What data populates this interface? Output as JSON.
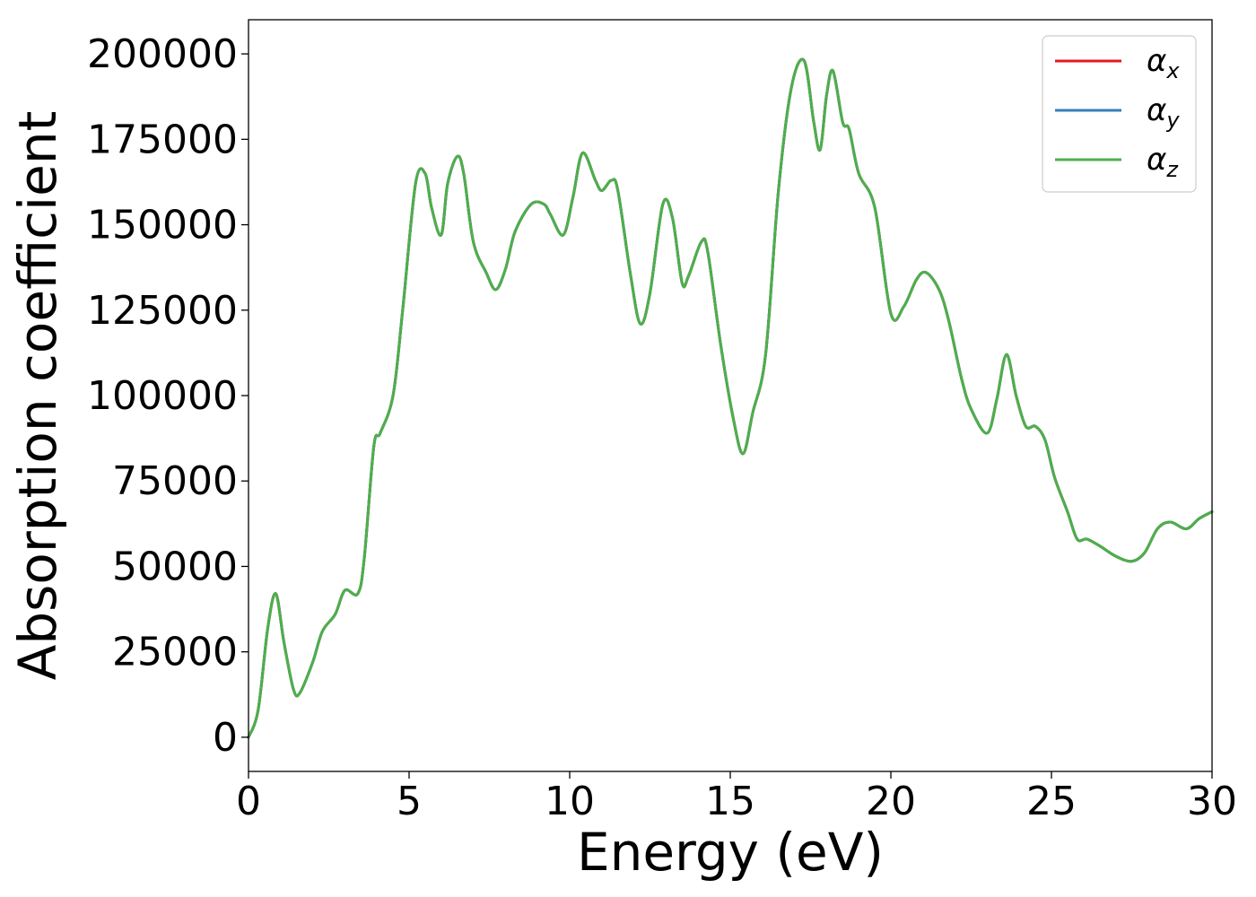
{
  "chart_data": {
    "type": "line",
    "title": "",
    "xlabel": "Energy (eV)",
    "ylabel": "Absorption coefficient",
    "xlim": [
      0,
      30
    ],
    "ylim": [
      -10000,
      210000
    ],
    "xticks": [
      0,
      5,
      10,
      15,
      20,
      25,
      30
    ],
    "xtick_labels": [
      "0",
      "5",
      "10",
      "15",
      "20",
      "25",
      "30"
    ],
    "yticks": [
      0,
      25000,
      50000,
      75000,
      100000,
      125000,
      150000,
      175000,
      200000
    ],
    "ytick_labels": [
      "0",
      "25000",
      "50000",
      "75000",
      "100000",
      "125000",
      "150000",
      "175000",
      "200000"
    ],
    "grid": false,
    "legend_position": "top-right",
    "x": [
      0,
      0.3,
      0.6,
      0.85,
      1.1,
      1.4,
      1.6,
      2.0,
      2.3,
      2.7,
      3.0,
      3.4,
      3.6,
      3.9,
      4.1,
      4.5,
      4.8,
      5.2,
      5.5,
      5.7,
      6.0,
      6.2,
      6.5,
      6.7,
      7.0,
      7.4,
      7.7,
      8.0,
      8.3,
      8.8,
      9.2,
      9.4,
      9.8,
      10.1,
      10.4,
      10.8,
      11.0,
      11.3,
      11.5,
      11.9,
      12.2,
      12.5,
      12.9,
      13.2,
      13.5,
      13.7,
      14.1,
      14.3,
      14.7,
      15.1,
      15.4,
      15.7,
      16.1,
      16.5,
      16.9,
      17.3,
      17.6,
      17.8,
      18.0,
      18.2,
      18.5,
      18.7,
      19.0,
      19.5,
      20.0,
      20.4,
      20.8,
      21.1,
      21.5,
      21.8,
      22.2,
      22.5,
      23.0,
      23.3,
      23.6,
      23.9,
      24.2,
      24.5,
      24.8,
      25.1,
      25.5,
      25.8,
      26.1,
      26.5,
      27.0,
      27.5,
      27.9,
      28.3,
      28.7,
      29.2,
      29.6,
      30.0
    ],
    "series": [
      {
        "name": "αx",
        "color": "#e41a1c",
        "values": [
          0,
          8000,
          32000,
          42000,
          28000,
          14000,
          13000,
          22000,
          31000,
          36000,
          43000,
          42000,
          52000,
          85000,
          89000,
          100000,
          125000,
          162000,
          165000,
          155000,
          147000,
          162000,
          170000,
          165000,
          145000,
          136000,
          131000,
          137000,
          148000,
          156000,
          156000,
          153000,
          147000,
          158000,
          171000,
          163000,
          160000,
          163000,
          160000,
          135000,
          121000,
          130000,
          156000,
          152000,
          133000,
          135000,
          145000,
          142000,
          115000,
          93000,
          83000,
          95000,
          112000,
          160000,
          190000,
          198000,
          180000,
          172000,
          188000,
          195000,
          180000,
          178000,
          165000,
          155000,
          124000,
          126000,
          134000,
          136000,
          131000,
          122000,
          105000,
          96000,
          89000,
          99000,
          112000,
          100000,
          91000,
          91000,
          87000,
          76000,
          66000,
          58000,
          58000,
          56000,
          53000,
          51500,
          54000,
          61000,
          63000,
          61000,
          64000,
          66000
        ]
      },
      {
        "name": "αy",
        "color": "#377eb8",
        "values": [
          0,
          8000,
          32000,
          42000,
          28000,
          14000,
          13000,
          22000,
          31000,
          36000,
          43000,
          42000,
          52000,
          85000,
          89000,
          100000,
          125000,
          162000,
          165000,
          155000,
          147000,
          162000,
          170000,
          165000,
          145000,
          136000,
          131000,
          137000,
          148000,
          156000,
          156000,
          153000,
          147000,
          158000,
          171000,
          163000,
          160000,
          163000,
          160000,
          135000,
          121000,
          130000,
          156000,
          152000,
          133000,
          135000,
          145000,
          142000,
          115000,
          93000,
          83000,
          95000,
          112000,
          160000,
          190000,
          198000,
          180000,
          172000,
          188000,
          195000,
          180000,
          178000,
          165000,
          155000,
          124000,
          126000,
          134000,
          136000,
          131000,
          122000,
          105000,
          96000,
          89000,
          99000,
          112000,
          100000,
          91000,
          91000,
          87000,
          76000,
          66000,
          58000,
          58000,
          56000,
          53000,
          51500,
          54000,
          61000,
          63000,
          61000,
          64000,
          66000
        ]
      },
      {
        "name": "αz",
        "color": "#4daf4a",
        "values": [
          0,
          8000,
          32000,
          42000,
          28000,
          14000,
          13000,
          22000,
          31000,
          36000,
          43000,
          42000,
          52000,
          85000,
          89000,
          100000,
          125000,
          162000,
          165000,
          155000,
          147000,
          162000,
          170000,
          165000,
          145000,
          136000,
          131000,
          137000,
          148000,
          156000,
          156000,
          153000,
          147000,
          158000,
          171000,
          163000,
          160000,
          163000,
          160000,
          135000,
          121000,
          130000,
          156000,
          152000,
          133000,
          135000,
          145000,
          142000,
          115000,
          93000,
          83000,
          95000,
          112000,
          160000,
          190000,
          198000,
          180000,
          172000,
          188000,
          195000,
          180000,
          178000,
          165000,
          155000,
          124000,
          126000,
          134000,
          136000,
          131000,
          122000,
          105000,
          96000,
          89000,
          99000,
          112000,
          100000,
          91000,
          91000,
          87000,
          76000,
          66000,
          58000,
          58000,
          56000,
          53000,
          51500,
          54000,
          61000,
          63000,
          61000,
          64000,
          66000
        ]
      }
    ],
    "legend": [
      {
        "symbol": "α",
        "sub": "x",
        "color": "#e41a1c"
      },
      {
        "symbol": "α",
        "sub": "y",
        "color": "#377eb8"
      },
      {
        "symbol": "α",
        "sub": "z",
        "color": "#4daf4a"
      }
    ]
  }
}
